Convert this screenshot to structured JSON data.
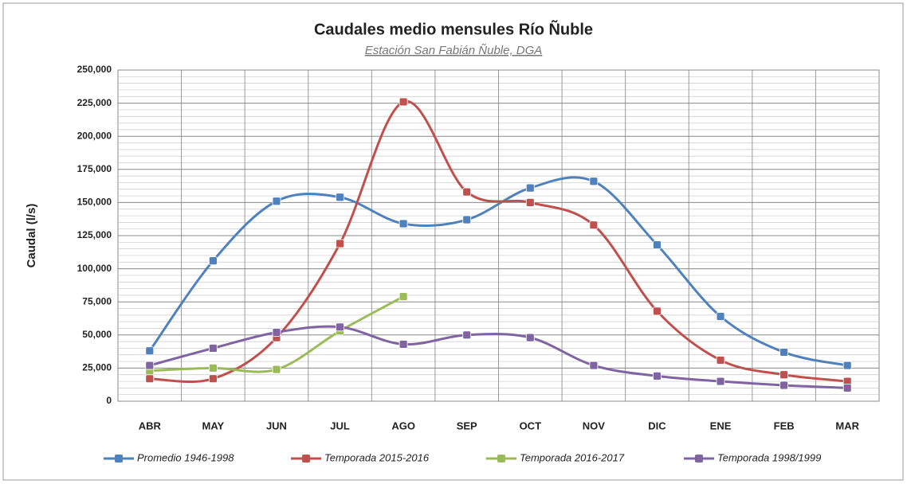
{
  "chart_data": {
    "type": "line",
    "title": "Caudales medio mensules Río Ñuble",
    "subtitle": "Estación San Fabián Ñuble, DGA",
    "y_label": "Caudal (l/s)",
    "categories": [
      "ABR",
      "MAY",
      "JUN",
      "JUL",
      "AGO",
      "SEP",
      "OCT",
      "NOV",
      "DIC",
      "ENE",
      "FEB",
      "MAR"
    ],
    "series": [
      {
        "name": "Promedio 1946-1998",
        "color": "#4f81bd",
        "values": [
          38000,
          106000,
          151000,
          154000,
          134000,
          137000,
          161000,
          166000,
          118000,
          64000,
          37000,
          27000
        ]
      },
      {
        "name": "Temporada 2015-2016",
        "color": "#c0504d",
        "values": [
          17000,
          17000,
          48000,
          119000,
          226000,
          158000,
          150000,
          133000,
          68000,
          31000,
          20000,
          15000
        ]
      },
      {
        "name": "Temporada 2016-2017",
        "color": "#9bbb59",
        "values": [
          23000,
          25000,
          24000,
          53000,
          79000,
          null,
          null,
          null,
          null,
          null,
          null,
          null
        ]
      },
      {
        "name": "Temporada 1998/1999",
        "color": "#8064a2",
        "values": [
          27000,
          40000,
          52000,
          56000,
          43000,
          50000,
          48000,
          27000,
          19000,
          15000,
          12000,
          10000
        ]
      }
    ],
    "ylim": [
      0,
      250000
    ],
    "yticks": [
      0,
      {
        "value": 25000,
        "label": "25,000"
      },
      {
        "value": 50000,
        "label": "50,000"
      },
      {
        "value": 75000,
        "label": "75,000"
      },
      {
        "value": 100000,
        "label": "100,000"
      },
      {
        "value": 125000,
        "label": "125,000"
      },
      {
        "value": 150000,
        "label": "150,000"
      },
      {
        "value": 175000,
        "label": "175,000"
      },
      {
        "value": 200000,
        "label": "200,000"
      },
      {
        "value": 225000,
        "label": "225,000"
      },
      {
        "value": 250000,
        "label": "250,000"
      }
    ],
    "grid": true,
    "legend": "bottom",
    "smooth": true
  }
}
